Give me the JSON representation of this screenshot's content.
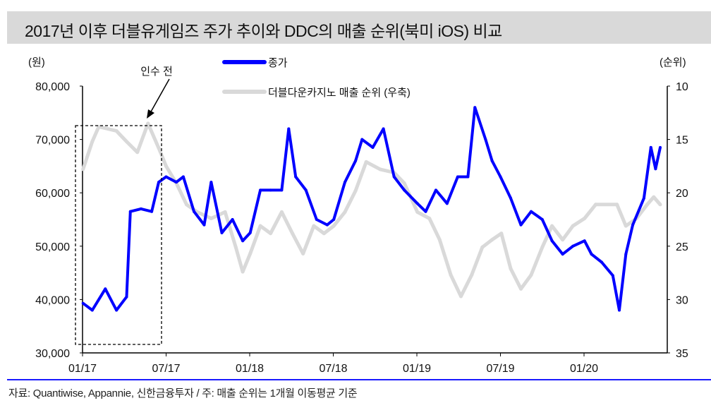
{
  "title": "2017년 이후 더블유게임즈 주가 추이와 DDC의 매출 순위(북미 iOS) 비교",
  "source": "자료: Quantiwise, Appannie, 신한금융투자 / 주: 매출 순위는 1개월 이동평균 기준",
  "annotation": "인수 전",
  "chart_data": {
    "type": "line",
    "left_axis": {
      "unit_label": "(원)",
      "range": [
        30000,
        80000
      ],
      "ticks": [
        "30,000",
        "40,000",
        "50,000",
        "60,000",
        "70,000",
        "80,000"
      ]
    },
    "right_axis": {
      "unit_label": "(순위)",
      "range": [
        35,
        10
      ],
      "inverted": true,
      "ticks": [
        "10",
        "15",
        "20",
        "25",
        "30",
        "35"
      ]
    },
    "x_ticks": [
      "01/17",
      "07/17",
      "01/18",
      "07/18",
      "01/19",
      "07/19",
      "01/20"
    ],
    "legend_placement": "top-center",
    "grid": false,
    "series": [
      {
        "name": "종가",
        "axis": "left",
        "color": "#0000ff",
        "points": [
          [
            "2017-01-02",
            39300
          ],
          [
            "2017-01-22",
            38000
          ],
          [
            "2017-02-20",
            42000
          ],
          [
            "2017-03-14",
            38000
          ],
          [
            "2017-04-06",
            40500
          ],
          [
            "2017-04-14",
            56500
          ],
          [
            "2017-05-07",
            57000
          ],
          [
            "2017-05-30",
            56500
          ],
          [
            "2017-06-15",
            62000
          ],
          [
            "2017-07-01",
            63000
          ],
          [
            "2017-07-23",
            62000
          ],
          [
            "2017-08-08",
            63000
          ],
          [
            "2017-08-31",
            56500
          ],
          [
            "2017-09-23",
            54000
          ],
          [
            "2017-10-08",
            62000
          ],
          [
            "2017-11-01",
            52500
          ],
          [
            "2017-11-24",
            55000
          ],
          [
            "2017-12-16",
            51000
          ],
          [
            "2018-01-02",
            52500
          ],
          [
            "2018-01-24",
            60500
          ],
          [
            "2018-02-16",
            60500
          ],
          [
            "2018-03-10",
            60500
          ],
          [
            "2018-03-25",
            72000
          ],
          [
            "2018-04-10",
            63000
          ],
          [
            "2018-05-02",
            60500
          ],
          [
            "2018-05-25",
            55000
          ],
          [
            "2018-06-18",
            54000
          ],
          [
            "2018-07-02",
            55000
          ],
          [
            "2018-07-26",
            62000
          ],
          [
            "2018-08-19",
            66000
          ],
          [
            "2018-09-03",
            70000
          ],
          [
            "2018-09-26",
            68500
          ],
          [
            "2018-10-19",
            72000
          ],
          [
            "2018-11-12",
            63000
          ],
          [
            "2018-12-04",
            60500
          ],
          [
            "2019-01-02",
            58000
          ],
          [
            "2019-01-20",
            56500
          ],
          [
            "2019-02-12",
            60500
          ],
          [
            "2019-03-06",
            58000
          ],
          [
            "2019-03-29",
            63000
          ],
          [
            "2019-04-21",
            63000
          ],
          [
            "2019-05-06",
            76000
          ],
          [
            "2019-05-29",
            70000
          ],
          [
            "2019-06-13",
            66000
          ],
          [
            "2019-07-01",
            63000
          ],
          [
            "2019-07-23",
            59000
          ],
          [
            "2019-08-15",
            54000
          ],
          [
            "2019-09-07",
            56500
          ],
          [
            "2019-10-01",
            55000
          ],
          [
            "2019-10-22",
            51000
          ],
          [
            "2019-11-15",
            48500
          ],
          [
            "2019-12-07",
            50000
          ],
          [
            "2020-01-02",
            51000
          ],
          [
            "2020-01-17",
            48500
          ],
          [
            "2020-02-09",
            47000
          ],
          [
            "2020-03-03",
            44500
          ],
          [
            "2020-03-17",
            38000
          ],
          [
            "2020-04-01",
            48500
          ],
          [
            "2020-04-16",
            54000
          ],
          [
            "2020-05-10",
            59000
          ],
          [
            "2020-05-25",
            68500
          ],
          [
            "2020-06-05",
            64500
          ],
          [
            "2020-06-15",
            68500
          ]
        ]
      },
      {
        "name": "더블다운카지노 매출 순위 (우축)",
        "axis": "right",
        "color": "#d9d9d9",
        "points": [
          [
            "2017-01-02",
            17.8
          ],
          [
            "2017-01-22",
            15.2
          ],
          [
            "2017-02-06",
            13.8
          ],
          [
            "2017-03-14",
            14.2
          ],
          [
            "2017-04-06",
            15.2
          ],
          [
            "2017-04-29",
            16.2
          ],
          [
            "2017-05-22",
            13.5
          ],
          [
            "2017-06-15",
            15.8
          ],
          [
            "2017-07-01",
            17.5
          ],
          [
            "2017-07-23",
            19.1
          ],
          [
            "2017-08-15",
            21.1
          ],
          [
            "2017-09-08",
            21.8
          ],
          [
            "2017-10-08",
            22.4
          ],
          [
            "2017-11-08",
            21.8
          ],
          [
            "2017-12-01",
            25.1
          ],
          [
            "2017-12-16",
            27.4
          ],
          [
            "2018-01-02",
            25.7
          ],
          [
            "2018-01-24",
            23.1
          ],
          [
            "2018-02-16",
            23.8
          ],
          [
            "2018-03-10",
            21.8
          ],
          [
            "2018-04-03",
            23.8
          ],
          [
            "2018-04-26",
            25.7
          ],
          [
            "2018-05-19",
            23.1
          ],
          [
            "2018-06-11",
            23.8
          ],
          [
            "2018-07-02",
            23.1
          ],
          [
            "2018-07-26",
            21.8
          ],
          [
            "2018-08-19",
            19.8
          ],
          [
            "2018-09-12",
            17.1
          ],
          [
            "2018-10-12",
            17.8
          ],
          [
            "2018-11-12",
            18.1
          ],
          [
            "2018-12-04",
            19.1
          ],
          [
            "2019-01-02",
            21.8
          ],
          [
            "2019-01-28",
            22.4
          ],
          [
            "2019-02-20",
            24.4
          ],
          [
            "2019-03-14",
            27.7
          ],
          [
            "2019-04-06",
            29.7
          ],
          [
            "2019-04-29",
            27.7
          ],
          [
            "2019-05-22",
            25.1
          ],
          [
            "2019-06-13",
            24.4
          ],
          [
            "2019-07-03",
            23.8
          ],
          [
            "2019-07-23",
            27.1
          ],
          [
            "2019-08-15",
            29.0
          ],
          [
            "2019-09-07",
            27.7
          ],
          [
            "2019-10-01",
            25.1
          ],
          [
            "2019-10-22",
            23.1
          ],
          [
            "2019-11-15",
            24.4
          ],
          [
            "2019-12-07",
            23.1
          ],
          [
            "2020-01-02",
            22.4
          ],
          [
            "2020-01-26",
            21.1
          ],
          [
            "2020-03-12",
            21.1
          ],
          [
            "2020-04-01",
            23.1
          ],
          [
            "2020-04-24",
            22.4
          ],
          [
            "2020-05-17",
            21.1
          ],
          [
            "2020-06-01",
            20.4
          ],
          [
            "2020-06-15",
            21.1
          ]
        ]
      }
    ]
  }
}
